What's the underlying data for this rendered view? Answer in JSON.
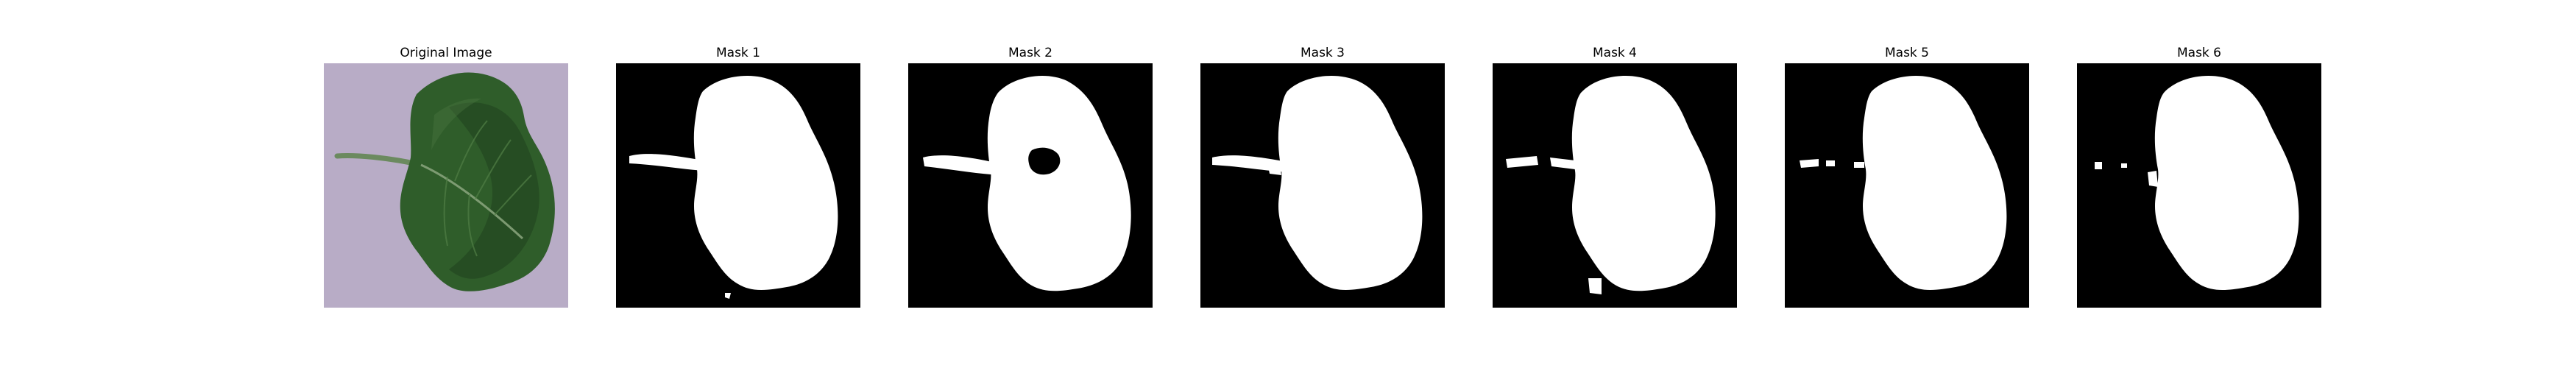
{
  "figure": {
    "panels": [
      {
        "title": "Original Image",
        "kind": "photo",
        "subject": "leaf"
      },
      {
        "title": "Mask 1",
        "kind": "binary-mask"
      },
      {
        "title": "Mask 2",
        "kind": "binary-mask"
      },
      {
        "title": "Mask 3",
        "kind": "binary-mask"
      },
      {
        "title": "Mask 4",
        "kind": "binary-mask"
      },
      {
        "title": "Mask 5",
        "kind": "binary-mask"
      },
      {
        "title": "Mask 6",
        "kind": "binary-mask"
      }
    ]
  },
  "colors": {
    "background": "#ffffff",
    "mask_background": "#000000",
    "mask_foreground": "#ffffff",
    "photo_background": "#b8acc6",
    "leaf_dark": "#1f3f1d",
    "leaf_mid": "#2f5d2a",
    "leaf_light": "#4f7c44"
  }
}
